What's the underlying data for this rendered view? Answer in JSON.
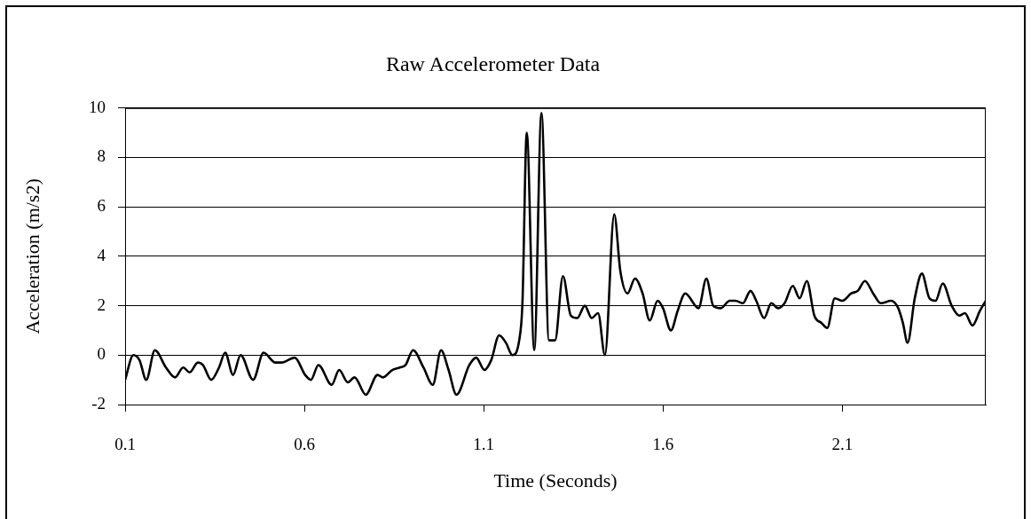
{
  "chart_data": {
    "type": "line",
    "title": "Raw Accelerometer Data",
    "xlabel": "Time (Seconds)",
    "ylabel": "Acceleration (m/s2)",
    "x": [
      0.1,
      0.123,
      0.14,
      0.159,
      0.183,
      0.214,
      0.239,
      0.262,
      0.28,
      0.303,
      0.317,
      0.34,
      0.362,
      0.379,
      0.401,
      0.422,
      0.457,
      0.486,
      0.519,
      0.536,
      0.573,
      0.602,
      0.618,
      0.639,
      0.676,
      0.697,
      0.721,
      0.74,
      0.771,
      0.804,
      0.819,
      0.845,
      0.866,
      0.882,
      0.903,
      0.932,
      0.958,
      0.981,
      1.002,
      1.024,
      1.06,
      1.079,
      1.102,
      1.121,
      1.143,
      1.162,
      1.18,
      1.199,
      1.208,
      1.22,
      1.241,
      1.261,
      1.282,
      1.299,
      1.321,
      1.343,
      1.361,
      1.382,
      1.401,
      1.419,
      1.438,
      1.464,
      1.481,
      1.501,
      1.522,
      1.543,
      1.563,
      1.585,
      1.6,
      1.622,
      1.641,
      1.662,
      1.699,
      1.721,
      1.74,
      1.761,
      1.786,
      1.802,
      1.823,
      1.844,
      1.86,
      1.882,
      1.902,
      1.921,
      1.939,
      1.962,
      1.981,
      2.001,
      2.022,
      2.042,
      2.058,
      2.079,
      2.1,
      2.125,
      2.143,
      2.163,
      2.186,
      2.207,
      2.236,
      2.256,
      2.269,
      2.282,
      2.302,
      2.322,
      2.343,
      2.36,
      2.38,
      2.405,
      2.426,
      2.442,
      2.463,
      2.484,
      2.5
    ],
    "values": [
      -1.0,
      0.0,
      -0.2,
      -1.0,
      0.2,
      -0.5,
      -0.9,
      -0.5,
      -0.7,
      -0.3,
      -0.4,
      -1.0,
      -0.5,
      0.1,
      -0.8,
      0.0,
      -1.0,
      0.1,
      -0.3,
      -0.3,
      -0.1,
      -0.8,
      -1.0,
      -0.4,
      -1.2,
      -0.6,
      -1.1,
      -0.9,
      -1.6,
      -0.8,
      -0.9,
      -0.6,
      -0.5,
      -0.4,
      0.2,
      -0.5,
      -1.2,
      0.2,
      -0.6,
      -1.6,
      -0.4,
      -0.1,
      -0.6,
      -0.2,
      0.8,
      0.5,
      0.0,
      0.6,
      2.1,
      9.0,
      0.2,
      9.8,
      0.6,
      0.6,
      3.2,
      1.6,
      1.5,
      2.0,
      1.5,
      1.7,
      0.0,
      5.7,
      3.4,
      2.5,
      3.1,
      2.5,
      1.4,
      2.2,
      1.9,
      1.0,
      1.8,
      2.5,
      1.9,
      3.1,
      2.0,
      1.9,
      2.2,
      2.2,
      2.1,
      2.6,
      2.2,
      1.5,
      2.1,
      1.9,
      2.1,
      2.8,
      2.3,
      3.0,
      1.6,
      1.3,
      1.1,
      2.3,
      2.2,
      2.5,
      2.6,
      3.0,
      2.5,
      2.1,
      2.2,
      1.9,
      1.3,
      0.5,
      2.3,
      3.3,
      2.3,
      2.2,
      2.9,
      2.0,
      1.6,
      1.7,
      1.2,
      1.8,
      2.2
    ],
    "color": "#000000",
    "xlim": [
      0.1,
      2.5
    ],
    "xticks": [
      0.1,
      0.6,
      1.1,
      1.6,
      2.1
    ],
    "ylim": [
      -2,
      10
    ],
    "yticks": [
      -2,
      0,
      2,
      4,
      6,
      8,
      10
    ],
    "grid": "y",
    "legend": false,
    "marker": "none"
  }
}
